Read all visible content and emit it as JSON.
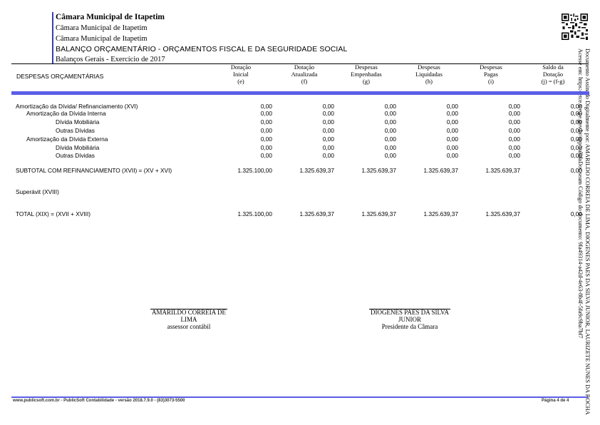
{
  "header": {
    "title": "Câmara Municipal de Itapetim",
    "line2": "Câmara Municipal de Itapetim",
    "line3": "Câmara Municipal de Itapetim",
    "report": "BALANÇO ORÇAMENTÁRIO - ORÇAMENTOS FISCAL E DA SEGURIDADE SOCIAL",
    "subtitle": "Balanços Gerais - Exercício de 2017"
  },
  "side_text": {
    "line1": "Documento Assinado Digitalmente por: AMARILDO CORREIA DE LIMA, DIOGENES PAES DA SILVA JUNIOR, LAURIZETE NUNES DA ROCHA",
    "line2": "Acesse em: https://etce.tce.pe.gov.br/epp/validaDoc.seam Código do documento: 9fa49314-a42d-4e63-8b4f-5fa9c9ba7bf7"
  },
  "table": {
    "title_column": "DESPESAS ORÇAMENTÁRIAS",
    "columns": [
      {
        "l1": "Dotação",
        "l2": "Inicial",
        "l3": "(e)"
      },
      {
        "l1": "Dotação",
        "l2": "Atualizada",
        "l3": "(f)"
      },
      {
        "l1": "Despesas",
        "l2": "Empenhadas",
        "l3": "(g)"
      },
      {
        "l1": "Despesas",
        "l2": "Liquidadas",
        "l3": "(h)"
      },
      {
        "l1": "Despesas",
        "l2": "Pagas",
        "l3": "(i)"
      },
      {
        "l1": "Saldo da",
        "l2": "Dotação",
        "l3": "(j) = (f-g)"
      }
    ],
    "rows": [
      {
        "label": "Amortização da Dívida/ Refinanciamento (XVI)",
        "v": [
          "0,00",
          "0,00",
          "0,00",
          "0,00",
          "0,00",
          "0,00"
        ]
      },
      {
        "label": "Amortização da Dívida Interna",
        "v": [
          "0,00",
          "0,00",
          "0,00",
          "0,00",
          "0,00",
          "0,00"
        ]
      },
      {
        "label": "Dívida Mobiliária",
        "v": [
          "0,00",
          "0,00",
          "0,00",
          "0,00",
          "0,00",
          "0,00"
        ]
      },
      {
        "label": "Outras Dívidas",
        "v": [
          "0,00",
          "0,00",
          "0,00",
          "0,00",
          "0,00",
          "0,00"
        ]
      },
      {
        "label": "Amortização da Dívida Externa",
        "v": [
          "0,00",
          "0,00",
          "0,00",
          "0,00",
          "0,00",
          "0,00"
        ]
      },
      {
        "label": "Dívida Mobiliária",
        "v": [
          "0,00",
          "0,00",
          "0,00",
          "0,00",
          "0,00",
          "0,00"
        ]
      },
      {
        "label": "Outras Dívidas",
        "v": [
          "0,00",
          "0,00",
          "0,00",
          "0,00",
          "0,00",
          "0,00"
        ]
      },
      {
        "label": "SUBTOTAL COM REFINANCIAMENTO (XVII) = (XV + XVI)",
        "v": [
          "1.325.100,00",
          "1.325.639,37",
          "1.325.639,37",
          "1.325.639,37",
          "1.325.639,37",
          "0,00"
        ]
      },
      {
        "label": "Superávit (XVIII)",
        "v": [
          "",
          "",
          "",
          "",
          "",
          ""
        ]
      },
      {
        "label": "TOTAL (XIX) = (XVII + XVIII)",
        "v": [
          "1.325.100,00",
          "1.325.639,37",
          "1.325.639,37",
          "1.325.639,37",
          "1.325.639,37",
          "0,00"
        ]
      }
    ]
  },
  "signatures": [
    {
      "name1": "AMARILDO CORREIA DE",
      "name2": "LIMA",
      "role": "assessor contábil"
    },
    {
      "name1": "DIOGENES PAES DA SILVA",
      "name2": "JUNIOR",
      "role": "Presidente da Câmara"
    }
  ],
  "footer": {
    "left": "www.publicsoft.com.br - PublicSoft Contabilidade - versão 2018.7.9.0 - (83)3073-5500",
    "right": "Página 4 de 4"
  },
  "colors": {
    "accent": "#5a5ee6"
  }
}
